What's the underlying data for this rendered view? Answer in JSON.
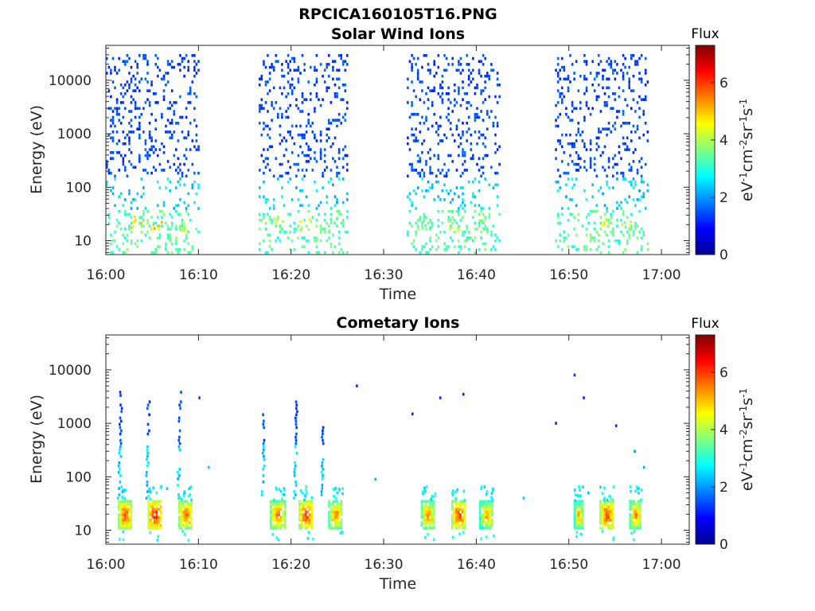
{
  "figure": {
    "title": "RPCICA160105T16.PNG"
  },
  "colors": {
    "colormap": [
      "#00008f",
      "#0000ff",
      "#0080ff",
      "#00ffff",
      "#80ff80",
      "#ffff00",
      "#ff8000",
      "#ff0000",
      "#800000"
    ],
    "axis": "#262626"
  },
  "chart_data": [
    {
      "type": "heatmap",
      "title": "Solar Wind Ions",
      "xlabel": "Time",
      "ylabel": "Energy (eV)",
      "x_ticks": [
        "16:00",
        "16:10",
        "16:20",
        "16:30",
        "16:40",
        "16:50",
        "17:00"
      ],
      "x_range_minutes": [
        0,
        63
      ],
      "y_scale": "log",
      "y_ticks": [
        "10",
        "100",
        "1000",
        "10000"
      ],
      "y_tick_values": [
        10,
        100,
        1000,
        10000
      ],
      "y_range": [
        5.5,
        45000
      ],
      "colorbar": {
        "title": "Flux",
        "label": "eV-1cm-2sr-1s-1",
        "ticks": [
          "0",
          "2",
          "4",
          "6"
        ],
        "range": [
          0,
          7.3
        ]
      },
      "bursts": [
        {
          "start_min": 0,
          "end_min": 10.0
        },
        {
          "start_min": 16.5,
          "end_min": 26.0
        },
        {
          "start_min": 32.5,
          "end_min": 42.5
        },
        {
          "start_min": 48.5,
          "end_min": 58.5
        }
      ],
      "highlights": [
        {
          "time_min": 3.2,
          "energy": 22,
          "flux": 5.0
        },
        {
          "time_min": 5.5,
          "energy": 20,
          "flux": 5.3
        },
        {
          "time_min": 8.5,
          "energy": 20,
          "flux": 4.8
        },
        {
          "time_min": 18.5,
          "energy": 22,
          "flux": 4.7
        },
        {
          "time_min": 21.5,
          "energy": 20,
          "flux": 4.7
        },
        {
          "time_min": 24.5,
          "energy": 20,
          "flux": 4.2
        },
        {
          "time_min": 34.5,
          "energy": 22,
          "flux": 4.0
        },
        {
          "time_min": 37.5,
          "energy": 20,
          "flux": 4.8
        },
        {
          "time_min": 40.5,
          "energy": 22,
          "flux": 4.2
        },
        {
          "time_min": 53.8,
          "energy": 22,
          "flux": 4.6
        },
        {
          "time_min": 56.0,
          "energy": 20,
          "flux": 4.2
        }
      ]
    },
    {
      "type": "heatmap",
      "title": "Cometary Ions",
      "xlabel": "Time",
      "ylabel": "Energy (eV)",
      "x_ticks": [
        "16:00",
        "16:10",
        "16:20",
        "16:30",
        "16:40",
        "16:50",
        "17:00"
      ],
      "x_range_minutes": [
        0,
        63
      ],
      "y_scale": "log",
      "y_ticks": [
        "10",
        "100",
        "1000",
        "10000"
      ],
      "y_tick_values": [
        10,
        100,
        1000,
        10000
      ],
      "y_range": [
        5.5,
        45000
      ],
      "colorbar": {
        "title": "Flux",
        "label": "eV-1cm-2sr-1s-1",
        "ticks": [
          "0",
          "2",
          "4",
          "6"
        ],
        "range": [
          0,
          7.3
        ]
      },
      "bursts": [
        {
          "start_min": 1.3,
          "end_min": 2.7,
          "peak_flux": 6.5
        },
        {
          "start_min": 4.5,
          "end_min": 6.0,
          "peak_flux": 6.8
        },
        {
          "start_min": 7.8,
          "end_min": 9.3,
          "peak_flux": 6.3
        },
        {
          "start_min": 17.7,
          "end_min": 19.3,
          "peak_flux": 6.2
        },
        {
          "start_min": 20.8,
          "end_min": 22.3,
          "peak_flux": 6.6
        },
        {
          "start_min": 24.0,
          "end_min": 25.5,
          "peak_flux": 6.0
        },
        {
          "start_min": 34.0,
          "end_min": 35.5,
          "peak_flux": 6.0
        },
        {
          "start_min": 37.3,
          "end_min": 38.8,
          "peak_flux": 6.5
        },
        {
          "start_min": 40.3,
          "end_min": 41.8,
          "peak_flux": 5.8
        },
        {
          "start_min": 50.5,
          "end_min": 51.5,
          "peak_flux": 5.8
        },
        {
          "start_min": 53.3,
          "end_min": 54.8,
          "peak_flux": 6.5
        },
        {
          "start_min": 56.5,
          "end_min": 57.8,
          "peak_flux": 6.0
        }
      ],
      "spikes": [
        {
          "time_min": 1.3,
          "max_energy": 4000
        },
        {
          "time_min": 4.3,
          "max_energy": 3000
        },
        {
          "time_min": 7.7,
          "max_energy": 4000
        },
        {
          "time_min": 16.8,
          "max_energy": 1600
        },
        {
          "time_min": 20.3,
          "max_energy": 2800
        },
        {
          "time_min": 23.2,
          "max_energy": 900
        }
      ]
    }
  ]
}
